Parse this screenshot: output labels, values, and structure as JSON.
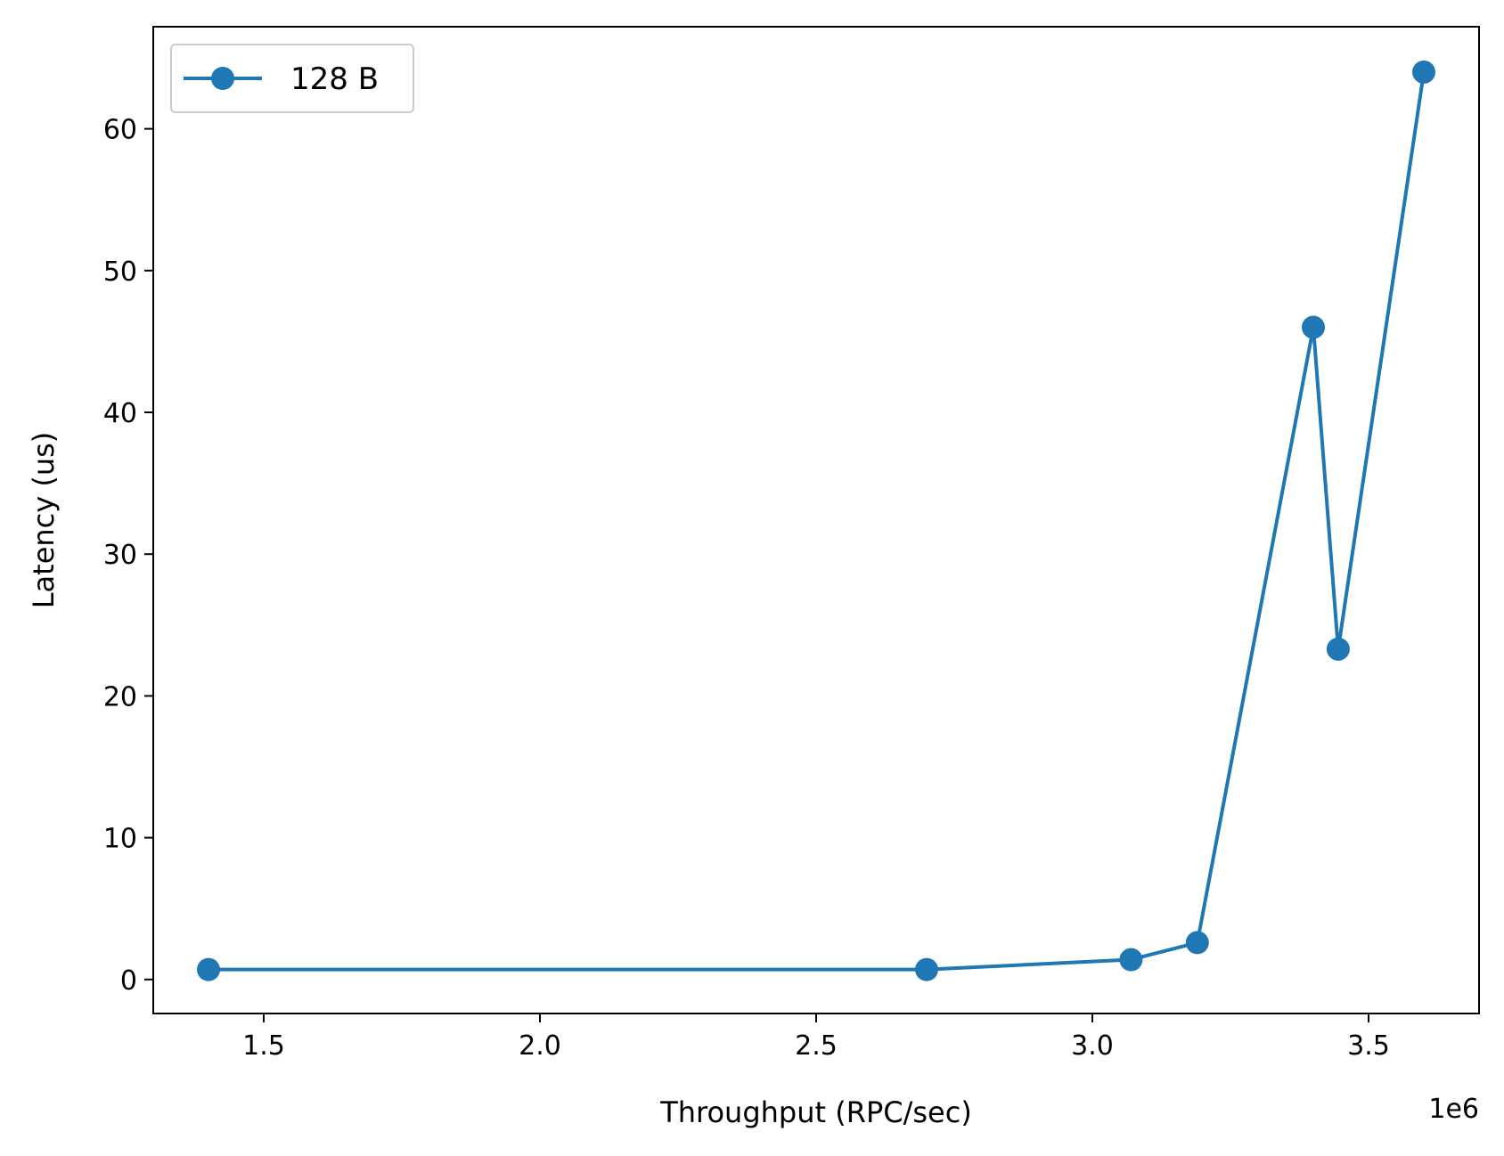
{
  "chart_data": {
    "type": "line",
    "title": "",
    "xlabel": "Throughput (RPC/sec)",
    "ylabel": "Latency (us)",
    "x_offset_text": "1e6",
    "xlim": [
      1.3,
      3.7
    ],
    "ylim": [
      -2.4,
      67.2
    ],
    "x_ticks": [
      1.5,
      2.0,
      2.5,
      3.0,
      3.5
    ],
    "x_tick_labels": [
      "1.5",
      "2.0",
      "2.5",
      "3.0",
      "3.5"
    ],
    "y_ticks": [
      0,
      10,
      20,
      30,
      40,
      50,
      60
    ],
    "y_tick_labels": [
      "0",
      "10",
      "20",
      "30",
      "40",
      "50",
      "60"
    ],
    "grid": false,
    "legend_position": "top-left",
    "series": [
      {
        "name": "128 B",
        "color": "#1f77b4",
        "marker": "circle",
        "x": [
          1.4,
          2.7,
          3.07,
          3.19,
          3.4,
          3.445,
          3.6
        ],
        "y": [
          0.7,
          0.7,
          1.4,
          2.6,
          46.0,
          23.3,
          64.0
        ]
      }
    ]
  }
}
